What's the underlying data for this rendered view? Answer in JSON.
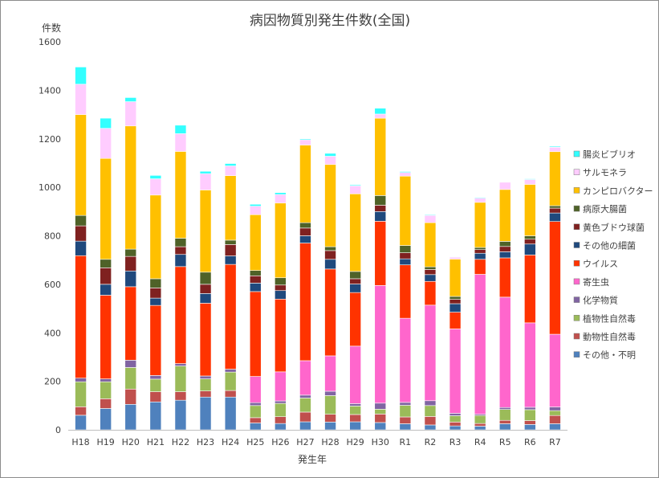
{
  "chart_data": {
    "type": "bar",
    "stacked": true,
    "title": "病因物質別発生件数(全国)",
    "xlabel": "発生年",
    "ylabel": "件数",
    "ylim": [
      0,
      1600
    ],
    "yticks": [
      0,
      200,
      400,
      600,
      800,
      1000,
      1200,
      1400,
      1600
    ],
    "grid": false,
    "legend_position": "right",
    "categories": [
      "H18",
      "H19",
      "H20",
      "H21",
      "H22",
      "H23",
      "H24",
      "H25",
      "H26",
      "H27",
      "H28",
      "H29",
      "H30",
      "R1",
      "R2",
      "R3",
      "R4",
      "R5",
      "R6",
      "R7"
    ],
    "series": [
      {
        "name": "その他・不明",
        "color": "#4f81bd",
        "values": [
          60,
          88,
          105,
          115,
          122,
          135,
          135,
          28,
          26,
          33,
          32,
          33,
          30,
          25,
          20,
          16,
          15,
          25,
          22,
          25
        ]
      },
      {
        "name": "動物性自然毒",
        "color": "#c0504d",
        "values": [
          35,
          40,
          63,
          42,
          35,
          25,
          27,
          22,
          28,
          40,
          32,
          30,
          35,
          28,
          35,
          16,
          11,
          14,
          16,
          34
        ]
      },
      {
        "name": "植物性自然毒",
        "color": "#9bbb59",
        "values": [
          103,
          70,
          89,
          52,
          106,
          50,
          76,
          50,
          55,
          58,
          77,
          35,
          20,
          48,
          45,
          26,
          33,
          45,
          45,
          20
        ]
      },
      {
        "name": "化学物質",
        "color": "#8064a2",
        "values": [
          15,
          12,
          30,
          15,
          10,
          12,
          12,
          12,
          10,
          12,
          18,
          10,
          25,
          12,
          20,
          10,
          5,
          8,
          10,
          15
        ]
      },
      {
        "name": "寄生虫",
        "color": "#ff66cc",
        "values": [
          0,
          0,
          0,
          0,
          0,
          0,
          0,
          108,
          120,
          142,
          146,
          237,
          485,
          347,
          394,
          348,
          577,
          455,
          348,
          300
        ]
      },
      {
        "name": "ウイルス",
        "color": "#ff3300",
        "values": [
          505,
          345,
          303,
          289,
          400,
          300,
          432,
          350,
          300,
          485,
          358,
          221,
          265,
          220,
          98,
          69,
          62,
          162,
          280,
          465
        ]
      },
      {
        "name": "その他の細菌",
        "color": "#1f497d",
        "values": [
          60,
          45,
          65,
          30,
          50,
          40,
          35,
          35,
          35,
          30,
          40,
          35,
          40,
          25,
          28,
          35,
          25,
          25,
          45,
          35
        ]
      },
      {
        "name": "黄色ブドウ球菌",
        "color": "#7f2120",
        "values": [
          63,
          68,
          60,
          42,
          32,
          38,
          47,
          30,
          23,
          32,
          36,
          22,
          26,
          25,
          21,
          18,
          15,
          22,
          20,
          20
        ]
      },
      {
        "name": "病原大腸菌",
        "color": "#4f6228",
        "values": [
          43,
          35,
          30,
          38,
          35,
          50,
          18,
          22,
          30,
          22,
          16,
          30,
          40,
          30,
          11,
          12,
          9,
          21,
          14,
          10
        ]
      },
      {
        "name": "カンピロバクター",
        "color": "#ffc000",
        "values": [
          416,
          416,
          508,
          345,
          358,
          339,
          266,
          230,
          308,
          320,
          339,
          320,
          319,
          286,
          182,
          154,
          186,
          214,
          212,
          223
        ]
      },
      {
        "name": "サルモネラ",
        "color": "#ffccff",
        "values": [
          125,
          124,
          100,
          67,
          73,
          67,
          40,
          35,
          35,
          22,
          34,
          33,
          17,
          15,
          30,
          8,
          17,
          30,
          20,
          18
        ]
      },
      {
        "name": "腸炎ビブリオ",
        "color": "#33ffff",
        "values": [
          71,
          42,
          17,
          14,
          35,
          10,
          10,
          8,
          8,
          4,
          12,
          4,
          24,
          4,
          3,
          2,
          3,
          2,
          3,
          4
        ]
      }
    ]
  }
}
